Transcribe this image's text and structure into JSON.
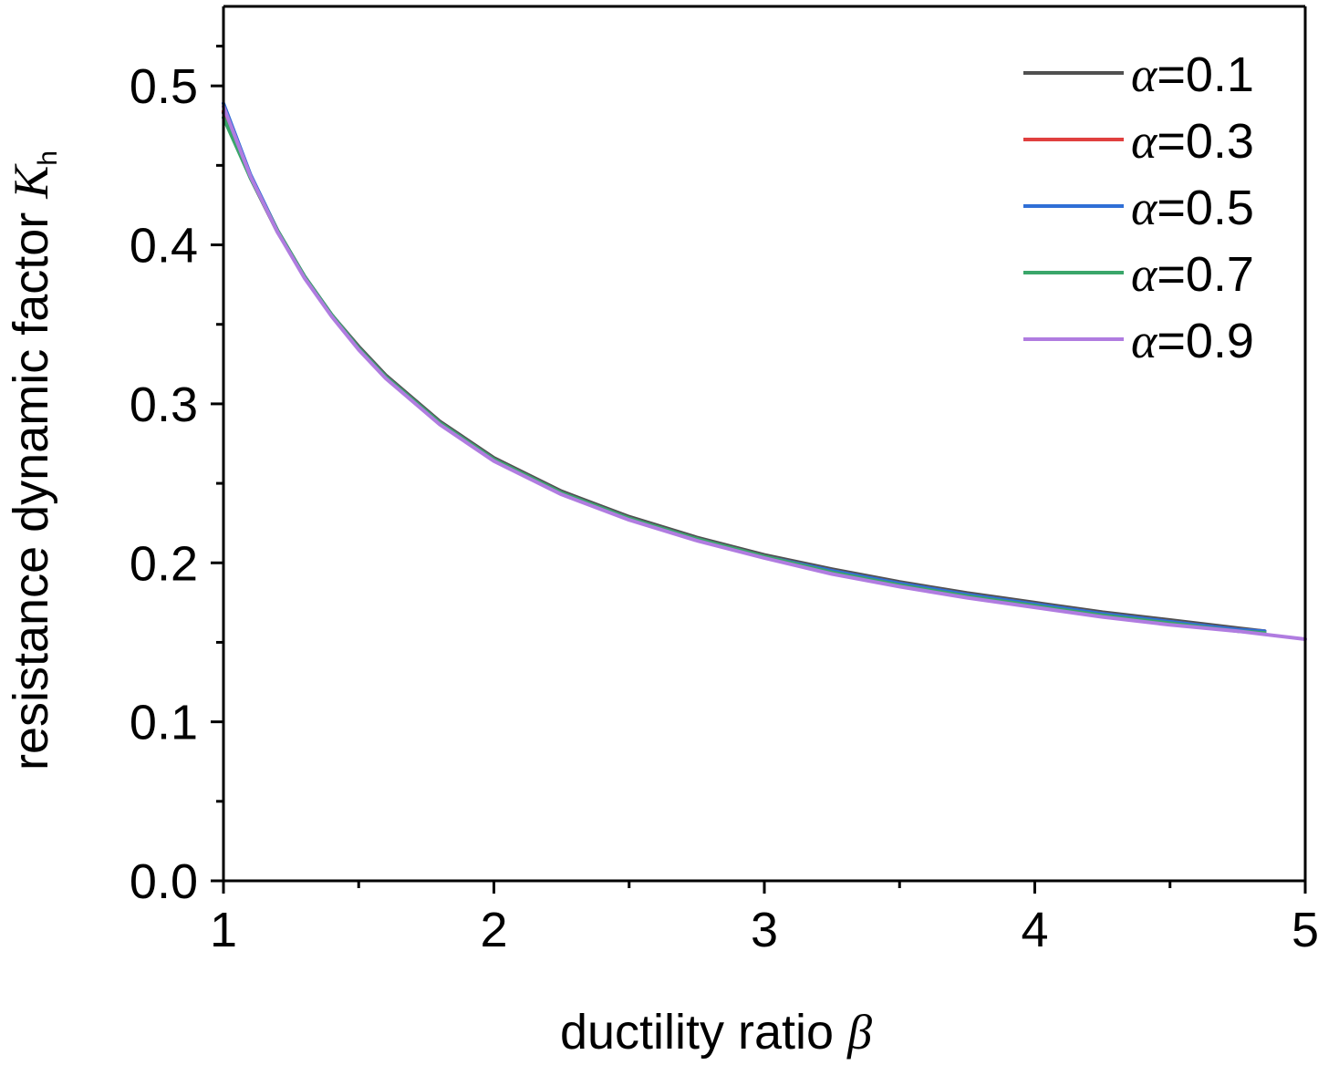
{
  "chart_data": {
    "type": "line",
    "title": "",
    "xlabel": "ductility ratio",
    "xlabel_symbol": "β",
    "ylabel": "resistance dynamic factor",
    "ylabel_symbol": "K",
    "ylabel_subscript": "h",
    "xlim": [
      1,
      5
    ],
    "ylim": [
      0.0,
      0.55
    ],
    "x_ticks": [
      "1",
      "2",
      "3",
      "4",
      "5"
    ],
    "x_tick_values": [
      1,
      2,
      3,
      4,
      5
    ],
    "y_ticks": [
      "0.0",
      "0.1",
      "0.2",
      "0.3",
      "0.4",
      "0.5"
    ],
    "y_tick_values": [
      0.0,
      0.1,
      0.2,
      0.3,
      0.4,
      0.5
    ],
    "grid": false,
    "legend_position": "top-right",
    "series": [
      {
        "name": "=0.1",
        "symbol": "α",
        "color": "#505050",
        "points": [
          [
            1.0,
            0.483
          ],
          [
            1.1,
            0.442
          ],
          [
            1.2,
            0.408
          ],
          [
            1.3,
            0.38
          ],
          [
            1.4,
            0.356
          ],
          [
            1.5,
            0.336
          ],
          [
            1.6,
            0.318
          ],
          [
            1.8,
            0.289
          ],
          [
            2.0,
            0.266
          ],
          [
            2.25,
            0.245
          ],
          [
            2.5,
            0.229
          ],
          [
            2.75,
            0.216
          ],
          [
            3.0,
            0.205
          ],
          [
            3.25,
            0.196
          ],
          [
            3.5,
            0.188
          ],
          [
            3.75,
            0.181
          ],
          [
            4.0,
            0.175
          ],
          [
            4.25,
            0.169
          ],
          [
            4.5,
            0.164
          ],
          [
            4.75,
            0.159
          ],
          [
            4.85,
            0.157
          ]
        ]
      },
      {
        "name": "=0.3",
        "symbol": "α",
        "color": "#e0403f",
        "points": [
          [
            1.0,
            0.484
          ],
          [
            1.1,
            0.443
          ],
          [
            1.2,
            0.409
          ],
          [
            1.3,
            0.38
          ],
          [
            1.4,
            0.356
          ],
          [
            1.5,
            0.335
          ],
          [
            1.6,
            0.317
          ],
          [
            1.8,
            0.288
          ],
          [
            2.0,
            0.265
          ],
          [
            2.25,
            0.244
          ],
          [
            2.5,
            0.228
          ],
          [
            2.75,
            0.215
          ],
          [
            3.0,
            0.204
          ],
          [
            3.25,
            0.195
          ],
          [
            3.5,
            0.187
          ],
          [
            3.75,
            0.18
          ],
          [
            4.0,
            0.174
          ],
          [
            4.25,
            0.168
          ],
          [
            4.5,
            0.163
          ],
          [
            4.75,
            0.158
          ],
          [
            4.85,
            0.157
          ]
        ]
      },
      {
        "name": "=0.5",
        "symbol": "α",
        "color": "#2f6fd6",
        "points": [
          [
            1.0,
            0.489
          ],
          [
            1.1,
            0.444
          ],
          [
            1.2,
            0.409
          ],
          [
            1.3,
            0.38
          ],
          [
            1.4,
            0.356
          ],
          [
            1.5,
            0.335
          ],
          [
            1.6,
            0.317
          ],
          [
            1.8,
            0.288
          ],
          [
            2.0,
            0.265
          ],
          [
            2.25,
            0.244
          ],
          [
            2.5,
            0.228
          ],
          [
            2.75,
            0.215
          ],
          [
            3.0,
            0.204
          ],
          [
            3.25,
            0.195
          ],
          [
            3.5,
            0.187
          ],
          [
            3.75,
            0.18
          ],
          [
            4.0,
            0.174
          ],
          [
            4.25,
            0.168
          ],
          [
            4.5,
            0.163
          ],
          [
            4.75,
            0.158
          ],
          [
            4.85,
            0.157
          ]
        ]
      },
      {
        "name": "=0.7",
        "symbol": "α",
        "color": "#3aa66a",
        "points": [
          [
            1.0,
            0.48
          ],
          [
            1.1,
            0.442
          ],
          [
            1.2,
            0.409
          ],
          [
            1.3,
            0.38
          ],
          [
            1.4,
            0.356
          ],
          [
            1.5,
            0.335
          ],
          [
            1.6,
            0.317
          ],
          [
            1.8,
            0.288
          ],
          [
            2.0,
            0.265
          ],
          [
            2.25,
            0.244
          ],
          [
            2.5,
            0.228
          ],
          [
            2.75,
            0.215
          ],
          [
            3.0,
            0.204
          ],
          [
            3.25,
            0.194
          ],
          [
            3.5,
            0.186
          ],
          [
            3.75,
            0.179
          ],
          [
            4.0,
            0.173
          ],
          [
            4.25,
            0.167
          ],
          [
            4.5,
            0.162
          ],
          [
            4.75,
            0.157
          ],
          [
            4.85,
            0.156
          ]
        ]
      },
      {
        "name": "=0.9",
        "symbol": "α",
        "color": "#b07ce0",
        "points": [
          [
            1.0,
            0.487
          ],
          [
            1.1,
            0.443
          ],
          [
            1.2,
            0.408
          ],
          [
            1.3,
            0.379
          ],
          [
            1.4,
            0.355
          ],
          [
            1.5,
            0.334
          ],
          [
            1.6,
            0.316
          ],
          [
            1.8,
            0.287
          ],
          [
            2.0,
            0.264
          ],
          [
            2.25,
            0.243
          ],
          [
            2.5,
            0.227
          ],
          [
            2.75,
            0.214
          ],
          [
            3.0,
            0.203
          ],
          [
            3.25,
            0.193
          ],
          [
            3.5,
            0.185
          ],
          [
            3.75,
            0.178
          ],
          [
            4.0,
            0.172
          ],
          [
            4.25,
            0.166
          ],
          [
            4.5,
            0.161
          ],
          [
            4.75,
            0.157
          ],
          [
            5.0,
            0.152
          ]
        ]
      }
    ]
  }
}
